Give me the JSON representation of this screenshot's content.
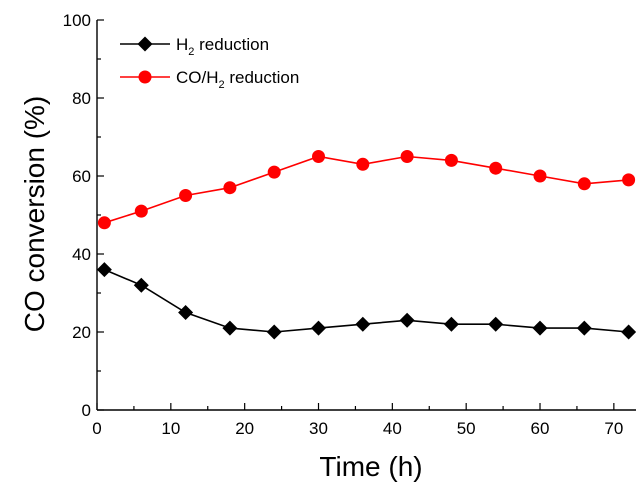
{
  "chart_data": {
    "type": "line",
    "title": "",
    "xlabel": "Time (h)",
    "ylabel": "CO conversion (%)",
    "xlim": [
      0,
      73
    ],
    "ylim": [
      0,
      100
    ],
    "xticks": [
      0,
      10,
      20,
      30,
      40,
      50,
      60,
      70
    ],
    "yticks": [
      0,
      20,
      40,
      60,
      80,
      100
    ],
    "grid": false,
    "legend_position": "top-left",
    "series": [
      {
        "name_parts": [
          "H",
          "2",
          " reduction"
        ],
        "color": "#000000",
        "marker": "diamond",
        "x": [
          1,
          6,
          12,
          18,
          24,
          30,
          36,
          42,
          48,
          54,
          60,
          66,
          72
        ],
        "y": [
          36,
          32,
          25,
          21,
          20,
          21,
          22,
          23,
          22,
          22,
          21,
          21,
          20
        ]
      },
      {
        "name_parts": [
          "CO/H",
          "2",
          " reduction"
        ],
        "color": "#ff0000",
        "marker": "circle",
        "x": [
          1,
          6,
          12,
          18,
          24,
          30,
          36,
          42,
          48,
          54,
          60,
          66,
          72
        ],
        "y": [
          48,
          51,
          55,
          57,
          61,
          65,
          63,
          65,
          64,
          62,
          60,
          58,
          59
        ]
      }
    ]
  }
}
